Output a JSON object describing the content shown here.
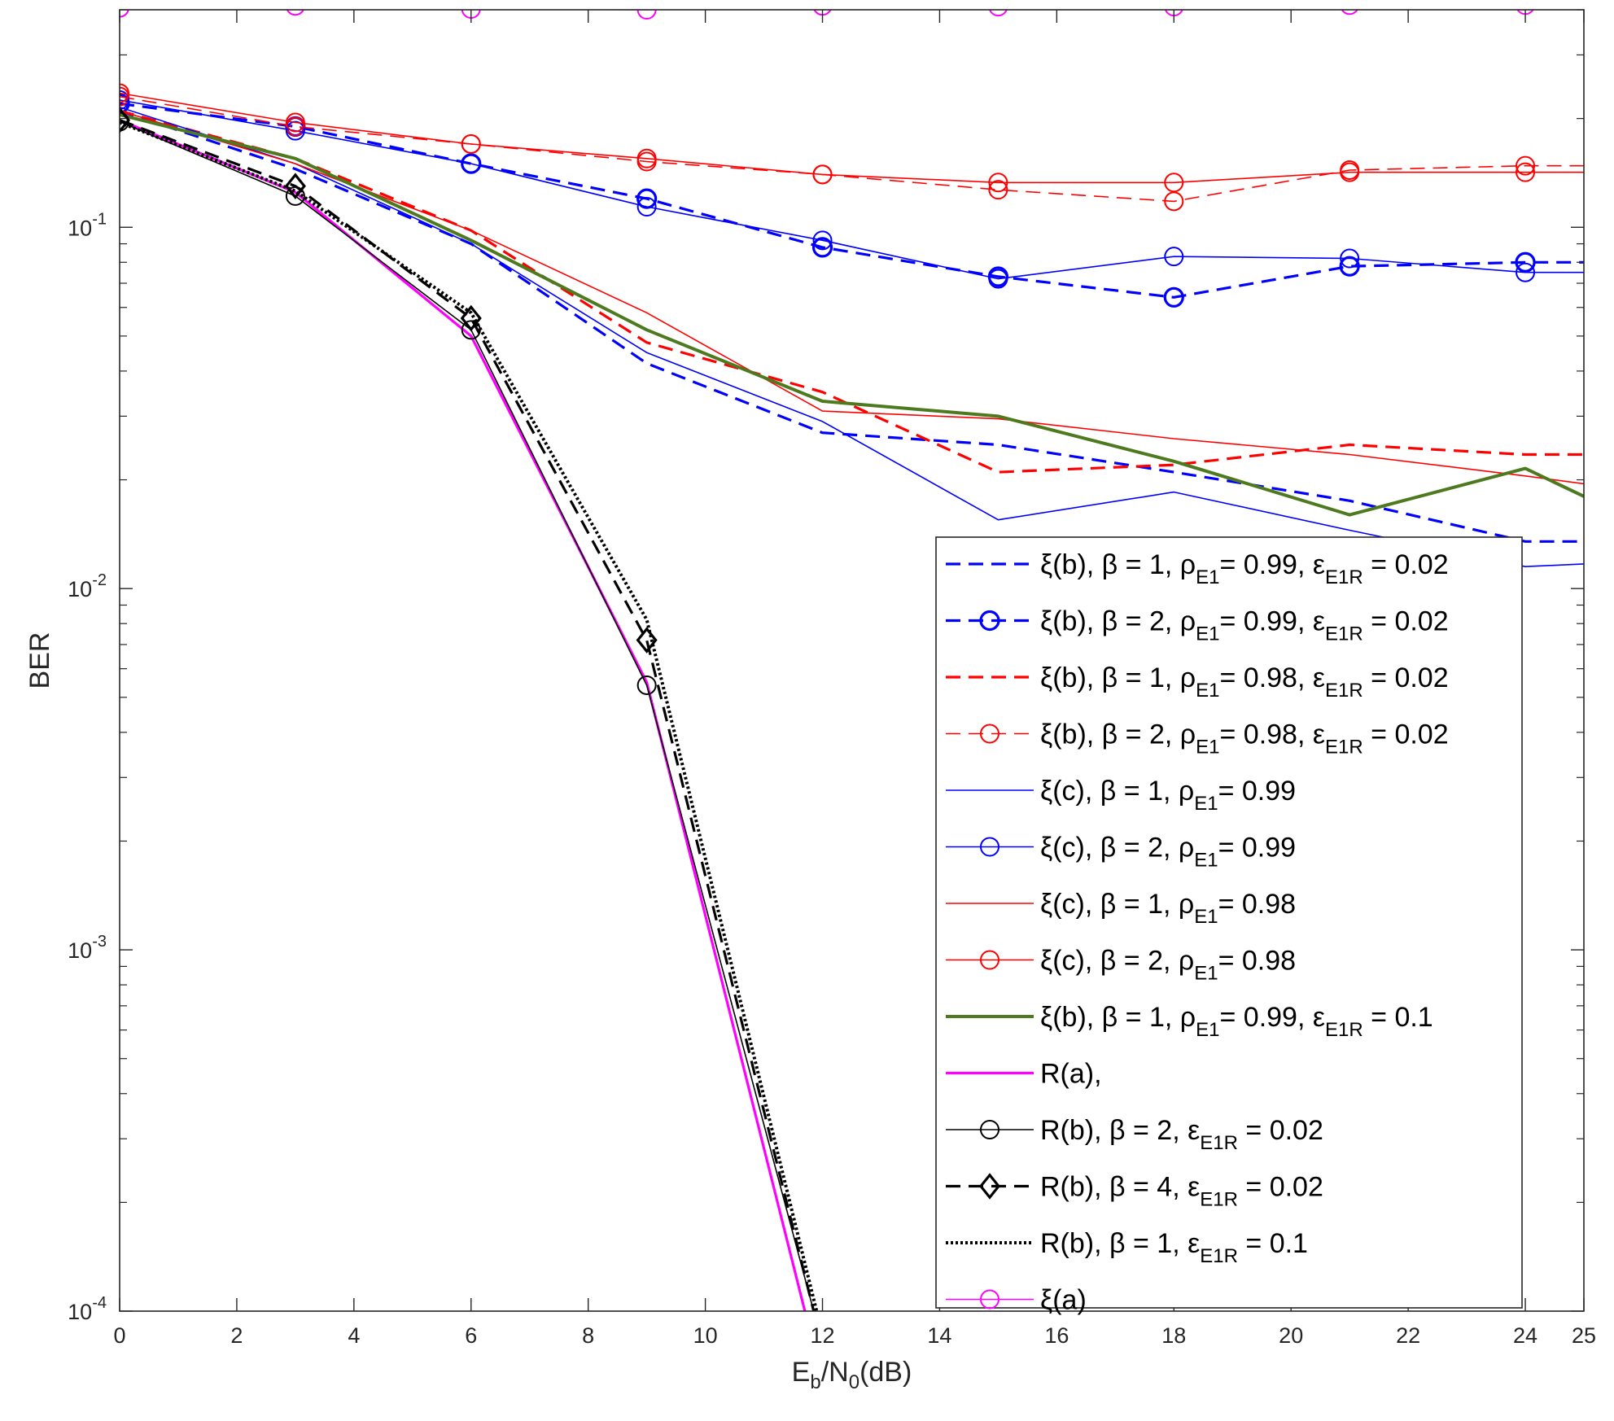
{
  "chart_data": {
    "type": "line",
    "title": "",
    "xlabel": {
      "main": "E",
      "sub1": "b",
      "mid": "/N",
      "sub2": "0",
      "tail": "(dB)"
    },
    "ylabel": "BER",
    "yscale": "log",
    "xlim": [
      0,
      25
    ],
    "ylim": [
      0.0001,
      0.4
    ],
    "xticks": [
      0,
      2,
      4,
      6,
      8,
      10,
      12,
      14,
      16,
      18,
      20,
      22,
      24,
      25
    ],
    "yticks": [
      {
        "value": 0.1,
        "base": "10",
        "exp": "-1"
      },
      {
        "value": 0.01,
        "base": "10",
        "exp": "-2"
      },
      {
        "value": 0.001,
        "base": "10",
        "exp": "-3"
      },
      {
        "value": 0.0001,
        "base": "10",
        "exp": "-4"
      }
    ],
    "grid": false,
    "legend_position": "bottom-right",
    "series": [
      {
        "name": "ξ(b), β = 1, ρE1 = 0.99, εE1R = 0.02",
        "color": "#0000ff",
        "width": 3.2,
        "dash": "dashed",
        "marker": "none",
        "x": [
          0,
          3,
          6,
          9,
          12,
          15,
          18,
          21,
          24,
          25
        ],
        "y": [
          0.21,
          0.145,
          0.09,
          0.042,
          0.027,
          0.025,
          0.021,
          0.0175,
          0.0135,
          0.0135
        ],
        "legend": {
          "prefix": "ξ(b), β = 1, ρ",
          "sub1": "E1",
          "mid": "= 0.99, ε",
          "sub2": "E1R",
          "tail": " = 0.02"
        }
      },
      {
        "name": "ξ(b), β = 2, ρE1 = 0.99, εE1R = 0.02",
        "color": "#0000ff",
        "width": 3.2,
        "dash": "dashed",
        "marker": "circle",
        "x": [
          0,
          3,
          6,
          9,
          12,
          15,
          18,
          21,
          24,
          25
        ],
        "y": [
          0.22,
          0.19,
          0.15,
          0.12,
          0.088,
          0.073,
          0.064,
          0.078,
          0.08,
          0.08
        ],
        "legend": {
          "prefix": "ξ(b), β = 2, ρ",
          "sub1": "E1",
          "mid": "= 0.99, ε",
          "sub2": "E1R",
          "tail": " = 0.02"
        }
      },
      {
        "name": "ξ(b), β = 1, ρE1 = 0.98, εE1R = 0.02",
        "color": "#ff0000",
        "width": 3.2,
        "dash": "dashed",
        "marker": "none",
        "x": [
          0,
          3,
          6,
          9,
          12,
          15,
          18,
          21,
          24,
          25
        ],
        "y": [
          0.21,
          0.155,
          0.098,
          0.048,
          0.035,
          0.021,
          0.022,
          0.025,
          0.0235,
          0.0235
        ],
        "legend": {
          "prefix": "ξ(b), β = 1, ρ",
          "sub1": "E1",
          "mid": "= 0.98, ε",
          "sub2": "E1R",
          "tail": " = 0.02"
        }
      },
      {
        "name": "ξ(b), β = 2, ρE1 = 0.98, εE1R = 0.02",
        "color": "#ff0000",
        "width": 1.6,
        "dash": "dashed",
        "marker": "circle",
        "x": [
          0,
          3,
          6,
          9,
          12,
          15,
          18,
          21,
          24,
          25
        ],
        "y": [
          0.23,
          0.19,
          0.17,
          0.152,
          0.14,
          0.127,
          0.118,
          0.144,
          0.148,
          0.148
        ],
        "legend": {
          "prefix": "ξ(b), β = 2, ρ",
          "sub1": "E1",
          "mid": "= 0.98, ε",
          "sub2": "E1R",
          "tail": " = 0.02"
        }
      },
      {
        "name": "ξ(c), β = 1, ρE1 = 0.99",
        "color": "#0000ff",
        "width": 1.6,
        "dash": "solid",
        "marker": "none",
        "x": [
          0,
          3,
          6,
          9,
          12,
          15,
          18,
          21,
          24,
          25
        ],
        "y": [
          0.215,
          0.15,
          0.09,
          0.045,
          0.029,
          0.0155,
          0.0185,
          0.0145,
          0.0115,
          0.0117
        ],
        "legend": {
          "prefix": "ξ(c), β = 1, ρ",
          "sub1": "E1",
          "mid": "= 0.99",
          "sub2": "",
          "tail": ""
        }
      },
      {
        "name": "ξ(c), β = 2, ρE1 = 0.99",
        "color": "#0000ff",
        "width": 1.6,
        "dash": "solid",
        "marker": "circle",
        "x": [
          0,
          3,
          6,
          9,
          12,
          15,
          18,
          21,
          24,
          25
        ],
        "y": [
          0.225,
          0.185,
          0.15,
          0.114,
          0.092,
          0.072,
          0.083,
          0.082,
          0.075,
          0.075
        ],
        "legend": {
          "prefix": "ξ(c), β = 2, ρ",
          "sub1": "E1",
          "mid": "= 0.99",
          "sub2": "",
          "tail": ""
        }
      },
      {
        "name": "ξ(c), β = 1, ρE1 = 0.98",
        "color": "#ff0000",
        "width": 1.6,
        "dash": "solid",
        "marker": "none",
        "x": [
          0,
          3,
          6,
          9,
          12,
          15,
          18,
          21,
          24,
          25
        ],
        "y": [
          0.21,
          0.15,
          0.098,
          0.058,
          0.031,
          0.0295,
          0.026,
          0.0235,
          0.0205,
          0.0195
        ],
        "legend": {
          "prefix": "ξ(c), β = 1, ρ",
          "sub1": "E1",
          "mid": "= 0.98",
          "sub2": "",
          "tail": ""
        }
      },
      {
        "name": "ξ(c), β = 2, ρE1 = 0.98",
        "color": "#ff0000",
        "width": 1.6,
        "dash": "solid",
        "marker": "circle",
        "x": [
          0,
          3,
          6,
          9,
          12,
          15,
          18,
          21,
          24,
          25
        ],
        "y": [
          0.235,
          0.195,
          0.17,
          0.155,
          0.14,
          0.133,
          0.133,
          0.142,
          0.142,
          0.142
        ],
        "legend": {
          "prefix": "ξ(c), β = 2, ρ",
          "sub1": "E1",
          "mid": "= 0.98",
          "sub2": "",
          "tail": ""
        }
      },
      {
        "name": "ξ(b), β = 1, ρE1 = 0.99, εE1R = 0.1",
        "color": "#4d7a1f",
        "width": 4,
        "dash": "solid",
        "marker": "none",
        "x": [
          0,
          3,
          6,
          9,
          12,
          15,
          18,
          21,
          24,
          25
        ],
        "y": [
          0.205,
          0.155,
          0.092,
          0.052,
          0.033,
          0.03,
          0.0225,
          0.016,
          0.0215,
          0.018
        ],
        "legend": {
          "prefix": "ξ(b), β = 1, ρ",
          "sub1": "E1",
          "mid": "= 0.99, ε",
          "sub2": "E1R",
          "tail": " = 0.1"
        }
      },
      {
        "name": "R(a),",
        "color": "#ff00ff",
        "width": 3.2,
        "dash": "solid",
        "marker": "none",
        "x": [
          0,
          3,
          6,
          9,
          11.7
        ],
        "y": [
          0.198,
          0.125,
          0.05,
          0.0055,
          0.0001
        ],
        "legend": {
          "prefix": "R(a),",
          "sub1": "",
          "mid": "",
          "sub2": "",
          "tail": ""
        }
      },
      {
        "name": "R(b), β = 2, εE1R = 0.02",
        "color": "#000000",
        "width": 1.6,
        "dash": "solid",
        "marker": "circle",
        "x": [
          0,
          3,
          6,
          9,
          11.85
        ],
        "y": [
          0.196,
          0.122,
          0.052,
          0.0054,
          0.0001
        ],
        "legend": {
          "prefix": "R(b), β = 2, ε",
          "sub1": "E1R",
          "mid": " = 0.02",
          "sub2": "",
          "tail": ""
        }
      },
      {
        "name": "R(b), β = 4, εE1R = 0.02",
        "color": "#000000",
        "width": 3.2,
        "dash": "dashed",
        "marker": "diamond",
        "x": [
          0,
          3,
          6,
          9,
          11.85
        ],
        "y": [
          0.198,
          0.13,
          0.056,
          0.0072,
          0.0001
        ],
        "legend": {
          "prefix": "R(b), β = 4, ε",
          "sub1": "E1R",
          "mid": " = 0.02",
          "sub2": "",
          "tail": ""
        }
      },
      {
        "name": "R(b), β = 1, εE1R = 0.1",
        "color": "#000000",
        "width": 4,
        "dash": "dotted",
        "marker": "none",
        "x": [
          0,
          3,
          6,
          9,
          11.9
        ],
        "y": [
          0.195,
          0.126,
          0.058,
          0.0082,
          0.0001
        ],
        "legend": {
          "prefix": "R(b), β = 1, ε",
          "sub1": "E1R",
          "mid": " = 0.1",
          "sub2": "",
          "tail": ""
        }
      },
      {
        "name": "ξ(a)",
        "color": "#ff00ff",
        "width": 1.6,
        "dash": "solid",
        "marker": "circle",
        "x": [
          0,
          3,
          6,
          9,
          12,
          15,
          18,
          21,
          24,
          25
        ],
        "y": [
          0.405,
          0.41,
          0.402,
          0.4,
          0.41,
          0.408,
          0.408,
          0.412,
          0.412,
          0.412
        ],
        "legend": {
          "prefix": "ξ(a)",
          "sub1": "",
          "mid": "",
          "sub2": "",
          "tail": ""
        }
      }
    ]
  }
}
